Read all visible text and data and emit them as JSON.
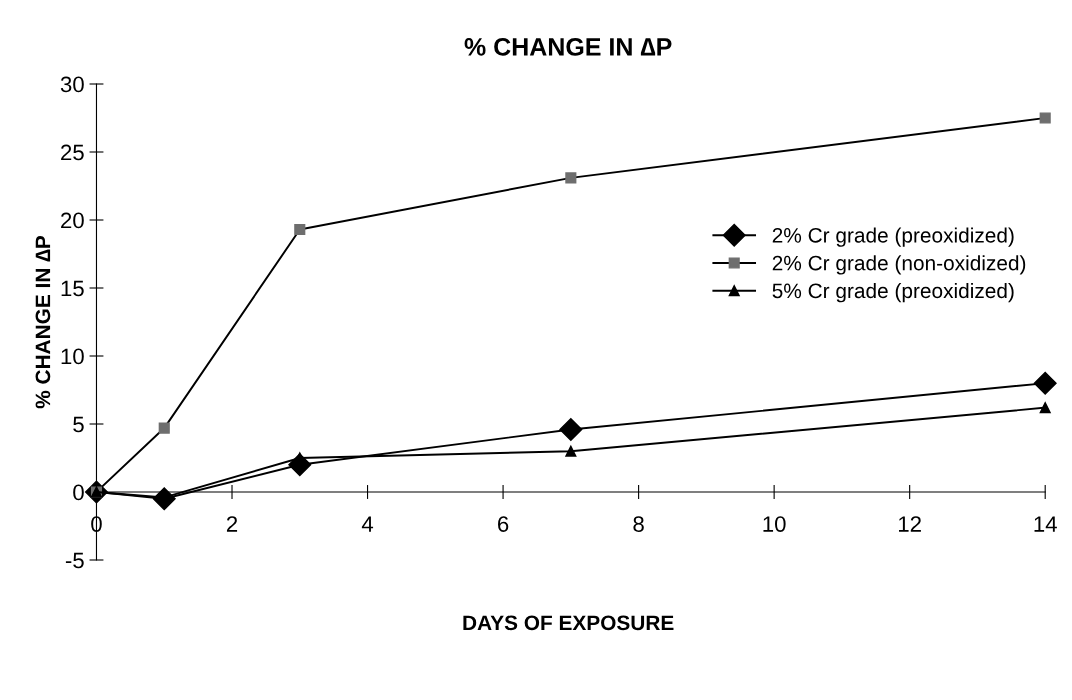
{
  "chart_data": {
    "type": "line",
    "title": "% CHANGE IN ∆P",
    "xlabel": "DAYS OF EXPOSURE",
    "ylabel": "% CHANGE IN ∆P",
    "x": [
      0,
      1,
      3,
      7,
      14
    ],
    "series": [
      {
        "name": "2% Cr grade (preoxidized)",
        "color": "#000000",
        "marker": "diamond",
        "values": [
          0,
          -0.5,
          2.0,
          4.6,
          8.0
        ]
      },
      {
        "name": "2% Cr grade (non-oxidized)",
        "color": "#6e6e6e",
        "marker": "square",
        "values": [
          0,
          4.7,
          19.3,
          23.1,
          27.5
        ]
      },
      {
        "name": "5% Cr grade (preoxidized)",
        "color": "#000000",
        "marker": "triangle",
        "values": [
          0,
          -0.4,
          2.5,
          3.0,
          6.2
        ]
      }
    ],
    "xlim": [
      0,
      14
    ],
    "xticks": [
      0,
      2,
      4,
      6,
      8,
      10,
      12,
      14
    ],
    "ylim": [
      -5,
      30
    ],
    "yticks": [
      -5,
      0,
      5,
      10,
      15,
      20,
      25,
      30
    ],
    "grid": false,
    "legend": "right",
    "line_style": "solid"
  }
}
